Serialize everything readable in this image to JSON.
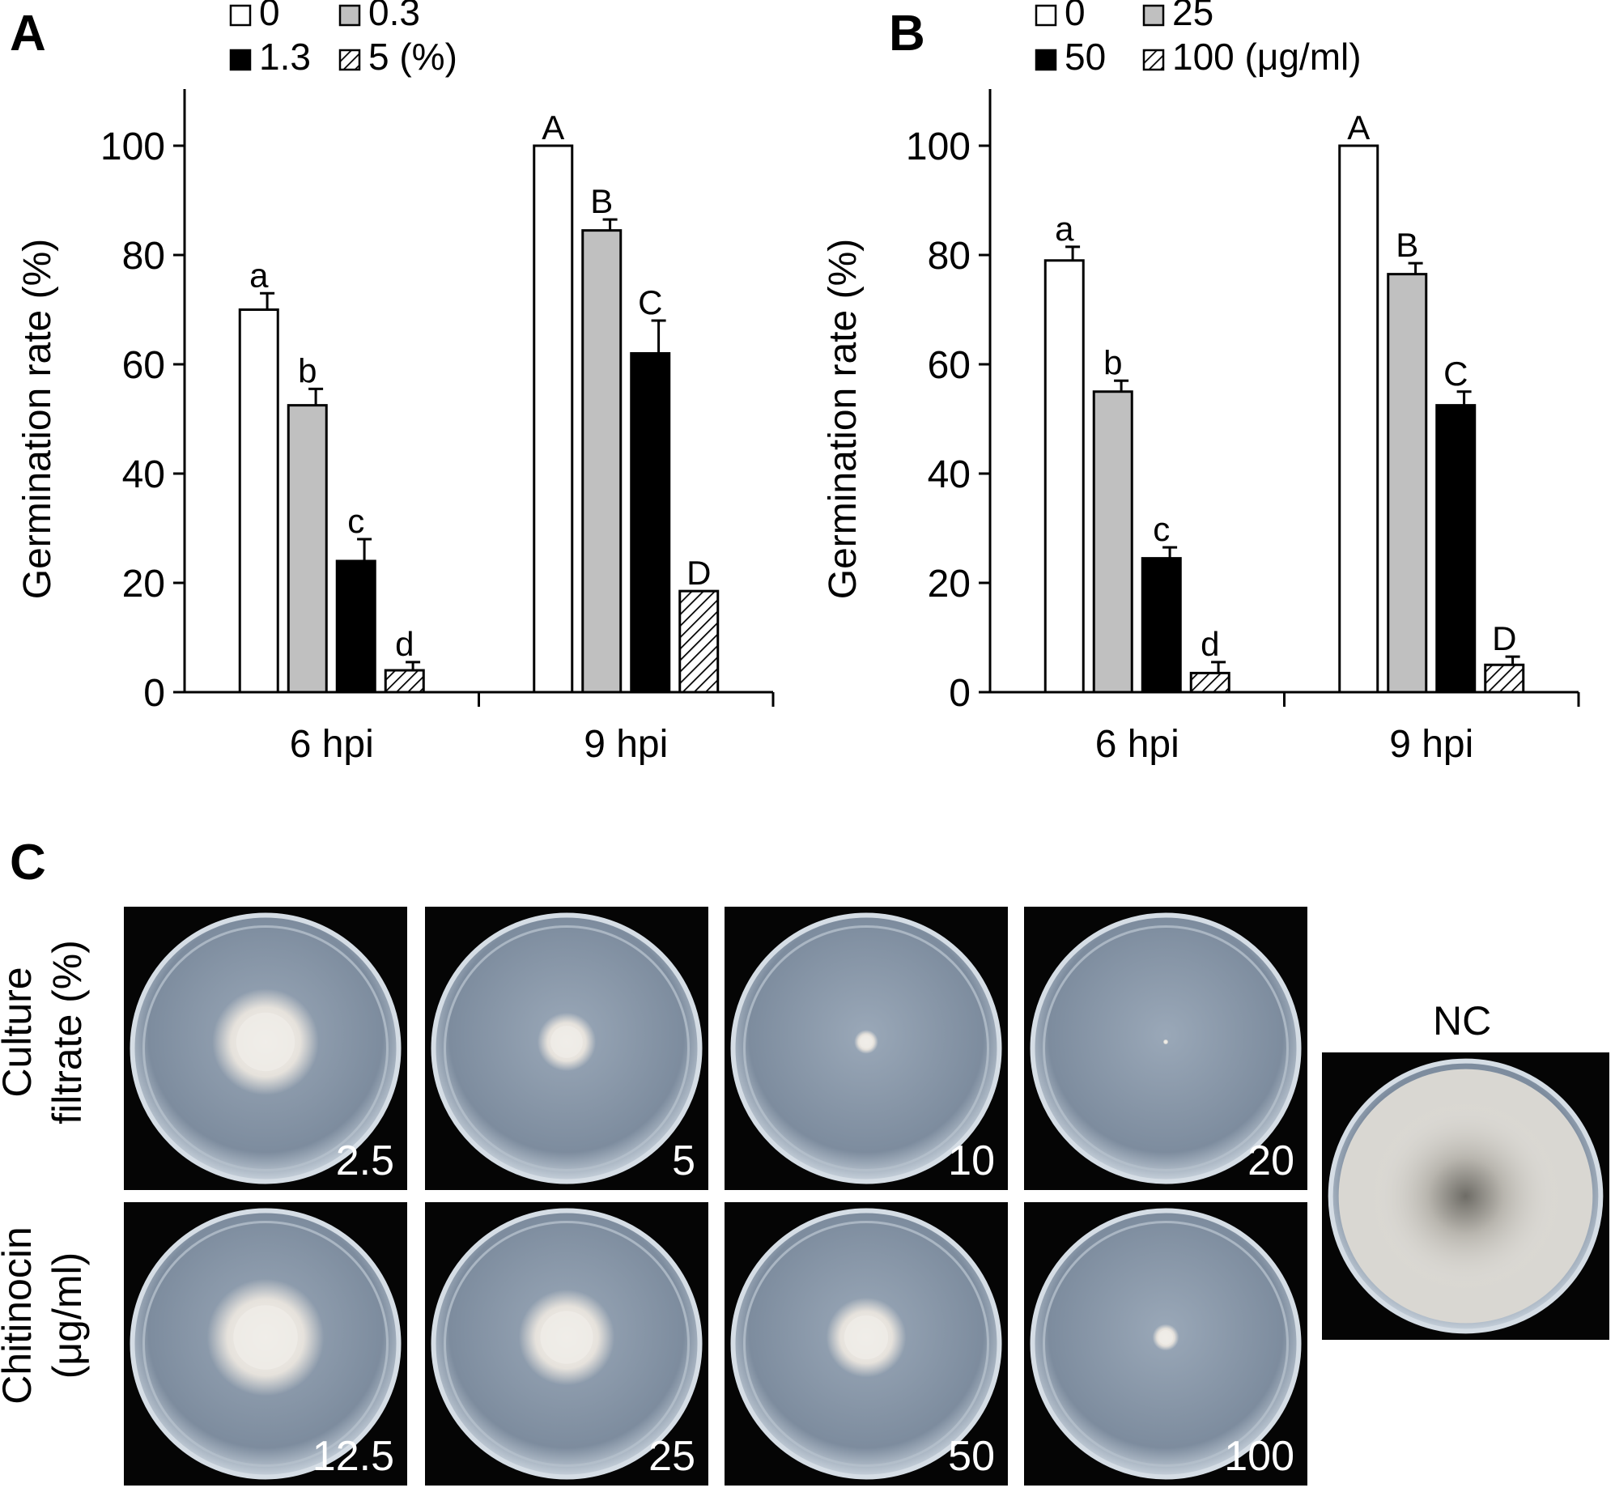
{
  "panels": {
    "A": "A",
    "B": "B",
    "C": "C"
  },
  "chart_data": [
    {
      "type": "bar",
      "panel": "A",
      "categories": [
        "6 hpi",
        "9 hpi"
      ],
      "legend": [
        "0",
        "0.3",
        "1.3",
        "5 (%)"
      ],
      "series": [
        {
          "name": "0",
          "fill": "#ffffff",
          "values": [
            70,
            100
          ],
          "errors": [
            3,
            0
          ],
          "letters": [
            "a",
            "A"
          ]
        },
        {
          "name": "0.3",
          "fill": "#c0c0c0",
          "values": [
            52.5,
            84.5
          ],
          "errors": [
            3,
            2
          ],
          "letters": [
            "b",
            "B"
          ]
        },
        {
          "name": "1.3",
          "fill": "#000000",
          "values": [
            24,
            62
          ],
          "errors": [
            4,
            6
          ],
          "letters": [
            "c",
            "C"
          ]
        },
        {
          "name": "5 (%)",
          "fill": "hatch",
          "values": [
            4,
            18.5
          ],
          "errors": [
            1.5,
            0
          ],
          "letters": [
            "d",
            "D"
          ]
        }
      ],
      "ylabel": "Germination rate (%)",
      "ylim": [
        0,
        100
      ],
      "yticks": [
        "0",
        "20",
        "40",
        "60",
        "80",
        "100"
      ]
    },
    {
      "type": "bar",
      "panel": "B",
      "categories": [
        "6 hpi",
        "9 hpi"
      ],
      "legend": [
        "0",
        "25",
        "50",
        "100 (μg/ml)"
      ],
      "series": [
        {
          "name": "0",
          "fill": "#ffffff",
          "values": [
            79,
            100
          ],
          "errors": [
            2.5,
            0
          ],
          "letters": [
            "a",
            "A"
          ]
        },
        {
          "name": "25",
          "fill": "#c0c0c0",
          "values": [
            55,
            76.5
          ],
          "errors": [
            2,
            2
          ],
          "letters": [
            "b",
            "B"
          ]
        },
        {
          "name": "50",
          "fill": "#000000",
          "values": [
            24.5,
            52.5
          ],
          "errors": [
            2,
            2.5
          ],
          "letters": [
            "c",
            "C"
          ]
        },
        {
          "name": "100 (μg/ml)",
          "fill": "hatch",
          "values": [
            3.5,
            5
          ],
          "errors": [
            2,
            1.5
          ],
          "letters": [
            "d",
            "D"
          ]
        }
      ],
      "ylabel": "Germination rate (%)",
      "ylim": [
        0,
        100
      ],
      "yticks": [
        "0",
        "20",
        "40",
        "60",
        "80",
        "100"
      ]
    }
  ],
  "photos": {
    "row1_label": [
      "Culture",
      "filtrate (%)"
    ],
    "row2_label": [
      "Chitinocin",
      "(μg/ml)"
    ],
    "row1": [
      {
        "label": "2.5",
        "colony": 0.4
      },
      {
        "label": "5",
        "colony": 0.22
      },
      {
        "label": "10",
        "colony": 0.09
      },
      {
        "label": "20",
        "colony": 0.02
      }
    ],
    "row2": [
      {
        "label": "12.5",
        "colony": 0.44
      },
      {
        "label": "25",
        "colony": 0.36
      },
      {
        "label": "50",
        "colony": 0.3
      },
      {
        "label": "100",
        "colony": 0.1
      }
    ],
    "nc_label": "NC"
  }
}
